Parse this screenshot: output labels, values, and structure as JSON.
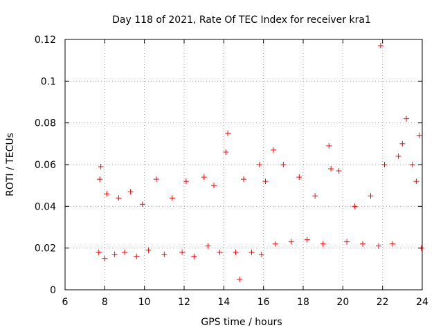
{
  "chart_data": {
    "type": "scatter",
    "title": "Day 118 of 2021, Rate Of TEC Index for receiver kra1",
    "xlabel": "GPS time / hours",
    "ylabel": "ROTI / TECUs",
    "xlim": [
      6,
      24
    ],
    "ylim": [
      0,
      0.12
    ],
    "x_ticks": [
      "6",
      "8",
      "10",
      "12",
      "14",
      "16",
      "18",
      "20",
      "22",
      "24"
    ],
    "y_ticks": [
      "0",
      "0.02",
      "0.04",
      "0.06",
      "0.08",
      "0.1",
      "0.12"
    ],
    "grid": true,
    "marker": "+",
    "color": "#ff0000",
    "series": [
      {
        "x": [
          7.7,
          7.75,
          7.8,
          8.0,
          8.1,
          8.5,
          8.7,
          9.0,
          9.3,
          9.6,
          9.9,
          10.2,
          10.6,
          11.0,
          11.4,
          11.9,
          12.1,
          12.5,
          13.0,
          13.2,
          13.5,
          13.8,
          14.1,
          14.2,
          14.6,
          14.8,
          15.0,
          15.4,
          15.8,
          15.9,
          16.1,
          16.5,
          16.6,
          17.0,
          17.4,
          17.8,
          18.2,
          18.6,
          19.0,
          19.3,
          19.4,
          19.8,
          20.2,
          20.6,
          21.0,
          21.4,
          21.8,
          21.9,
          22.1,
          22.5,
          22.8,
          23.0,
          23.2,
          23.5,
          23.7,
          23.85,
          23.95
        ],
        "y": [
          0.018,
          0.053,
          0.059,
          0.015,
          0.046,
          0.017,
          0.044,
          0.018,
          0.047,
          0.016,
          0.041,
          0.019,
          0.053,
          0.017,
          0.044,
          0.018,
          0.052,
          0.016,
          0.054,
          0.021,
          0.05,
          0.018,
          0.066,
          0.075,
          0.018,
          0.005,
          0.053,
          0.018,
          0.06,
          0.017,
          0.052,
          0.067,
          0.022,
          0.06,
          0.023,
          0.054,
          0.024,
          0.045,
          0.022,
          0.069,
          0.058,
          0.057,
          0.023,
          0.04,
          0.022,
          0.045,
          0.021,
          0.117,
          0.06,
          0.022,
          0.064,
          0.07,
          0.082,
          0.06,
          0.052,
          0.074,
          0.02
        ]
      }
    ]
  }
}
